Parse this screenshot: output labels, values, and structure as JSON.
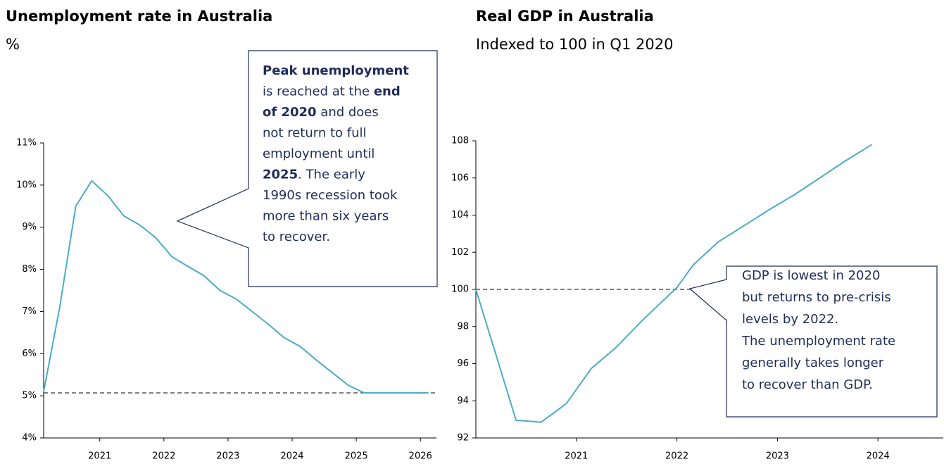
{
  "chart_data": [
    {
      "type": "line",
      "title": "Unemployment rate in Australia",
      "subtitle": "%",
      "x": [
        2020.125,
        2020.375,
        2020.625,
        2020.875,
        2021.125,
        2021.375,
        2021.625,
        2021.875,
        2022.125,
        2022.375,
        2022.625,
        2022.875,
        2023.125,
        2023.375,
        2023.625,
        2023.875,
        2024.125,
        2024.375,
        2024.625,
        2024.875,
        2025.125,
        2025.375,
        2025.625,
        2025.875,
        2026.125
      ],
      "series": [
        {
          "color": "#4bacc6",
          "values": [
            5.1,
            7.1,
            9.5,
            10.1,
            9.75,
            9.27,
            9.05,
            8.75,
            8.3,
            8.07,
            7.85,
            7.5,
            7.3,
            7.0,
            6.7,
            6.38,
            6.17,
            5.85,
            5.55,
            5.25,
            5.07,
            5.07,
            5.07,
            5.07,
            5.07
          ]
        }
      ],
      "xlim": [
        2020.125,
        2026.25
      ],
      "xticks": [
        2021,
        2022,
        2023,
        2024,
        2025,
        2026
      ],
      "ylim": [
        4,
        11
      ],
      "yticks": [
        {
          "value": 4,
          "label": "4%"
        },
        {
          "value": 5,
          "label": "5%"
        },
        {
          "value": 6,
          "label": "6%"
        },
        {
          "value": 7,
          "label": "7%"
        },
        {
          "value": 8,
          "label": "8%"
        },
        {
          "value": 9,
          "label": "9%"
        },
        {
          "value": 10,
          "label": "10%"
        },
        {
          "value": 11,
          "label": "11%"
        }
      ],
      "reference_line": 5.07,
      "annotation": {
        "lines": [
          [
            {
              "text": "Peak unemployment",
              "bold": true
            }
          ],
          [
            {
              "text": "is reached at the "
            },
            {
              "text": "end",
              "bold": true
            }
          ],
          [
            {
              "text": "of 2020",
              "bold": true
            },
            {
              "text": " and does"
            }
          ],
          [
            {
              "text": "not return to full"
            }
          ],
          [
            {
              "text": "employment until"
            }
          ],
          [
            {
              "text": "2025",
              "bold": true
            },
            {
              "text": ". The early"
            }
          ],
          [
            {
              "text": "1990s recession took"
            }
          ],
          [
            {
              "text": "more than six years"
            }
          ],
          [
            {
              "text": "to recover."
            }
          ]
        ]
      }
    },
    {
      "type": "line",
      "title": "Real GDP in Australia",
      "subtitle": "Indexed to 100 in Q1 2020",
      "x": [
        2020.0,
        2020.4,
        2020.65,
        2020.9,
        2021.15,
        2021.4,
        2021.65,
        2022.0,
        2022.16,
        2022.41,
        2022.66,
        2022.92,
        2023.17,
        2023.42,
        2023.67,
        2023.94
      ],
      "series": [
        {
          "color": "#4bacc6",
          "values": [
            100,
            92.95,
            92.85,
            93.85,
            95.75,
            96.9,
            98.3,
            100.1,
            101.3,
            102.55,
            103.4,
            104.3,
            105.1,
            106,
            106.9,
            107.8
          ]
        }
      ],
      "xlim": [
        2020,
        2024.65
      ],
      "xticks": [
        2021,
        2022,
        2023,
        2024
      ],
      "ylim": [
        92,
        108
      ],
      "yticks": [
        92,
        94,
        96,
        98,
        100,
        102,
        104,
        106,
        108
      ],
      "reference_line": 100,
      "annotation": {
        "lines": [
          [
            {
              "text": "GDP is lowest in 2020"
            }
          ],
          [
            {
              "text": "but returns to pre-crisis"
            }
          ],
          [
            {
              "text": "levels by 2022."
            }
          ],
          [
            {
              "text": "The unemployment rate"
            }
          ],
          [
            {
              "text": "generally takes longer"
            }
          ],
          [
            {
              "text": "to recover than GDP."
            }
          ]
        ]
      }
    }
  ]
}
